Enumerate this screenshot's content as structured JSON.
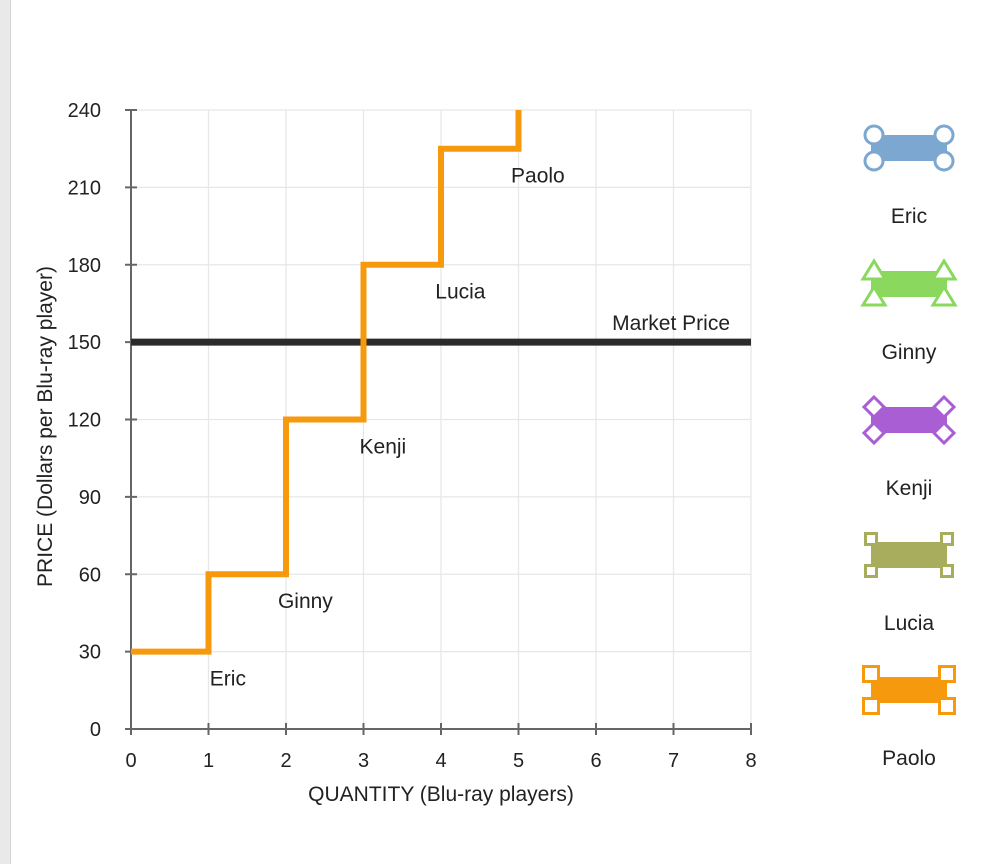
{
  "chart_data": {
    "type": "line",
    "title": "",
    "xlabel": "QUANTITY (Blu-ray players)",
    "ylabel": "PRICE (Dollars per Blu-ray player)",
    "xlim": [
      0,
      8
    ],
    "ylim": [
      0,
      240
    ],
    "xticks": [
      "0",
      "1",
      "2",
      "3",
      "4",
      "5",
      "6",
      "7",
      "8"
    ],
    "yticks": [
      "0",
      "30",
      "60",
      "90",
      "120",
      "150",
      "180",
      "210",
      "240"
    ],
    "grid": true,
    "legend_position": "right",
    "supply_curve": {
      "color": "#f7990d",
      "points": [
        [
          0,
          30
        ],
        [
          1,
          30
        ],
        [
          1,
          60
        ],
        [
          2,
          60
        ],
        [
          2,
          120
        ],
        [
          3,
          120
        ],
        [
          3,
          180
        ],
        [
          4,
          180
        ],
        [
          4,
          225
        ],
        [
          5,
          225
        ],
        [
          5,
          240
        ]
      ]
    },
    "market_price": {
      "label": "Market Price",
      "value": 150,
      "color": "#2b2b2b"
    },
    "annotations": [
      {
        "text": "Eric",
        "x": 1.25,
        "y": 20
      },
      {
        "text": "Ginny",
        "x": 2.25,
        "y": 50
      },
      {
        "text": "Kenji",
        "x": 3.25,
        "y": 110
      },
      {
        "text": "Lucia",
        "x": 4.25,
        "y": 170
      },
      {
        "text": "Paolo",
        "x": 5.25,
        "y": 215
      }
    ],
    "series": [
      {
        "name": "Eric",
        "color": "#7ba7d0",
        "marker": "circle"
      },
      {
        "name": "Ginny",
        "color": "#8ad85e",
        "marker": "triangle"
      },
      {
        "name": "Kenji",
        "color": "#a95ed3",
        "marker": "diamond"
      },
      {
        "name": "Lucia",
        "color": "#a8ad5e",
        "marker": "square"
      },
      {
        "name": "Paolo",
        "color": "#f7990d",
        "marker": "square"
      }
    ]
  }
}
